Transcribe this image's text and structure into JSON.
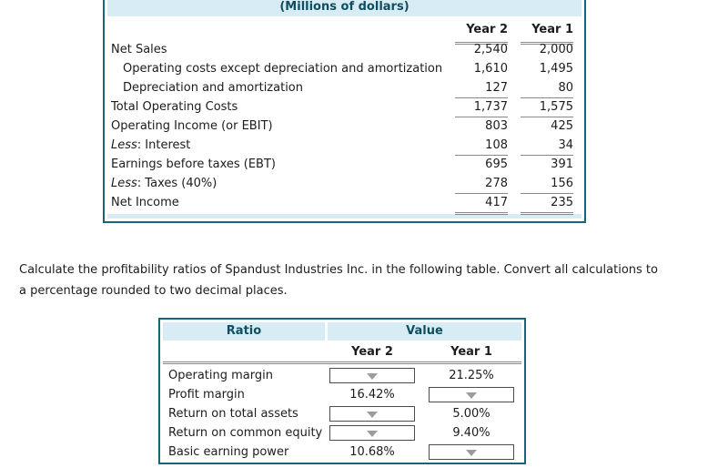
{
  "colors": {
    "table_border_teal": "#17647c",
    "header_band_blue": "#d8ecf6",
    "header_text_teal": "#0f4e5f",
    "rule_gray": "#8a8a8a",
    "dropdown_arrow_gray": "#9c9c9c"
  },
  "income_statement": {
    "title": "(Millions of dollars)",
    "columns": [
      "Year 2",
      "Year 1"
    ],
    "rows": [
      {
        "label": "Net Sales",
        "indent": false,
        "italic_prefix": "",
        "y2": "2,540",
        "y1": "2,000",
        "rule": "none"
      },
      {
        "label": "Operating costs except depreciation and amortization",
        "indent": true,
        "italic_prefix": "",
        "y2": "1,610",
        "y1": "1,495",
        "rule": "none"
      },
      {
        "label": "Depreciation and amortization",
        "indent": true,
        "italic_prefix": "",
        "y2": "127",
        "y1": "80",
        "rule": "single"
      },
      {
        "label": "Total Operating Costs",
        "indent": false,
        "italic_prefix": "",
        "y2": "1,737",
        "y1": "1,575",
        "rule": "single"
      },
      {
        "label": "Operating Income (or EBIT)",
        "indent": false,
        "italic_prefix": "",
        "y2": "803",
        "y1": "425",
        "rule": "none"
      },
      {
        "label": ": Interest",
        "indent": false,
        "italic_prefix": "Less",
        "y2": "108",
        "y1": "34",
        "rule": "single"
      },
      {
        "label": "Earnings before taxes (EBT)",
        "indent": false,
        "italic_prefix": "",
        "y2": "695",
        "y1": "391",
        "rule": "none"
      },
      {
        "label": ": Taxes (40%)",
        "indent": false,
        "italic_prefix": "Less",
        "y2": "278",
        "y1": "156",
        "rule": "single"
      },
      {
        "label": "Net Income",
        "indent": false,
        "italic_prefix": "",
        "y2": "417",
        "y1": "235",
        "rule": "double"
      }
    ]
  },
  "instruction": "Calculate the profitability ratios of Spandust Industries Inc. in the following table. Convert all calculations to a percentage rounded to two decimal places.",
  "ratio_table": {
    "col1_header": "Ratio",
    "col2_header": "Value",
    "year_headers": [
      "Year 2",
      "Year 1"
    ],
    "rows": [
      {
        "label": "Operating margin",
        "year2": {
          "type": "dropdown",
          "value": ""
        },
        "year1": {
          "type": "value",
          "value": "21.25%"
        }
      },
      {
        "label": "Profit margin",
        "year2": {
          "type": "value",
          "value": "16.42%"
        },
        "year1": {
          "type": "dropdown",
          "value": ""
        }
      },
      {
        "label": "Return on total assets",
        "year2": {
          "type": "dropdown",
          "value": ""
        },
        "year1": {
          "type": "value",
          "value": "5.00%"
        }
      },
      {
        "label": "Return on common equity",
        "year2": {
          "type": "dropdown",
          "value": ""
        },
        "year1": {
          "type": "value",
          "value": "9.40%"
        }
      },
      {
        "label": "Basic earning power",
        "year2": {
          "type": "value",
          "value": "10.68%"
        },
        "year1": {
          "type": "dropdown",
          "value": ""
        }
      }
    ]
  }
}
